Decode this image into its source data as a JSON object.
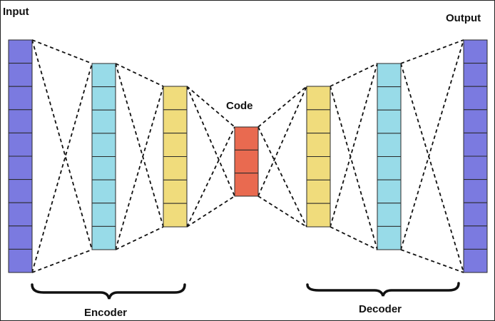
{
  "labels": {
    "input": "Input",
    "output": "Output",
    "code": "Code",
    "encoder": "Encoder",
    "decoder": "Decoder"
  },
  "layers": [
    {
      "id": "input-layer",
      "neurons": 10,
      "color": "#7b7ae0"
    },
    {
      "id": "encoder-hidden-1",
      "neurons": 8,
      "color": "#98dbe8"
    },
    {
      "id": "encoder-hidden-2",
      "neurons": 6,
      "color": "#f0dc7c"
    },
    {
      "id": "code-layer",
      "neurons": 3,
      "color": "#e96a50"
    },
    {
      "id": "decoder-hidden-1",
      "neurons": 6,
      "color": "#f0dc7c"
    },
    {
      "id": "decoder-hidden-2",
      "neurons": 8,
      "color": "#98dbe8"
    },
    {
      "id": "output-layer",
      "neurons": 10,
      "color": "#7b7ae0"
    }
  ]
}
